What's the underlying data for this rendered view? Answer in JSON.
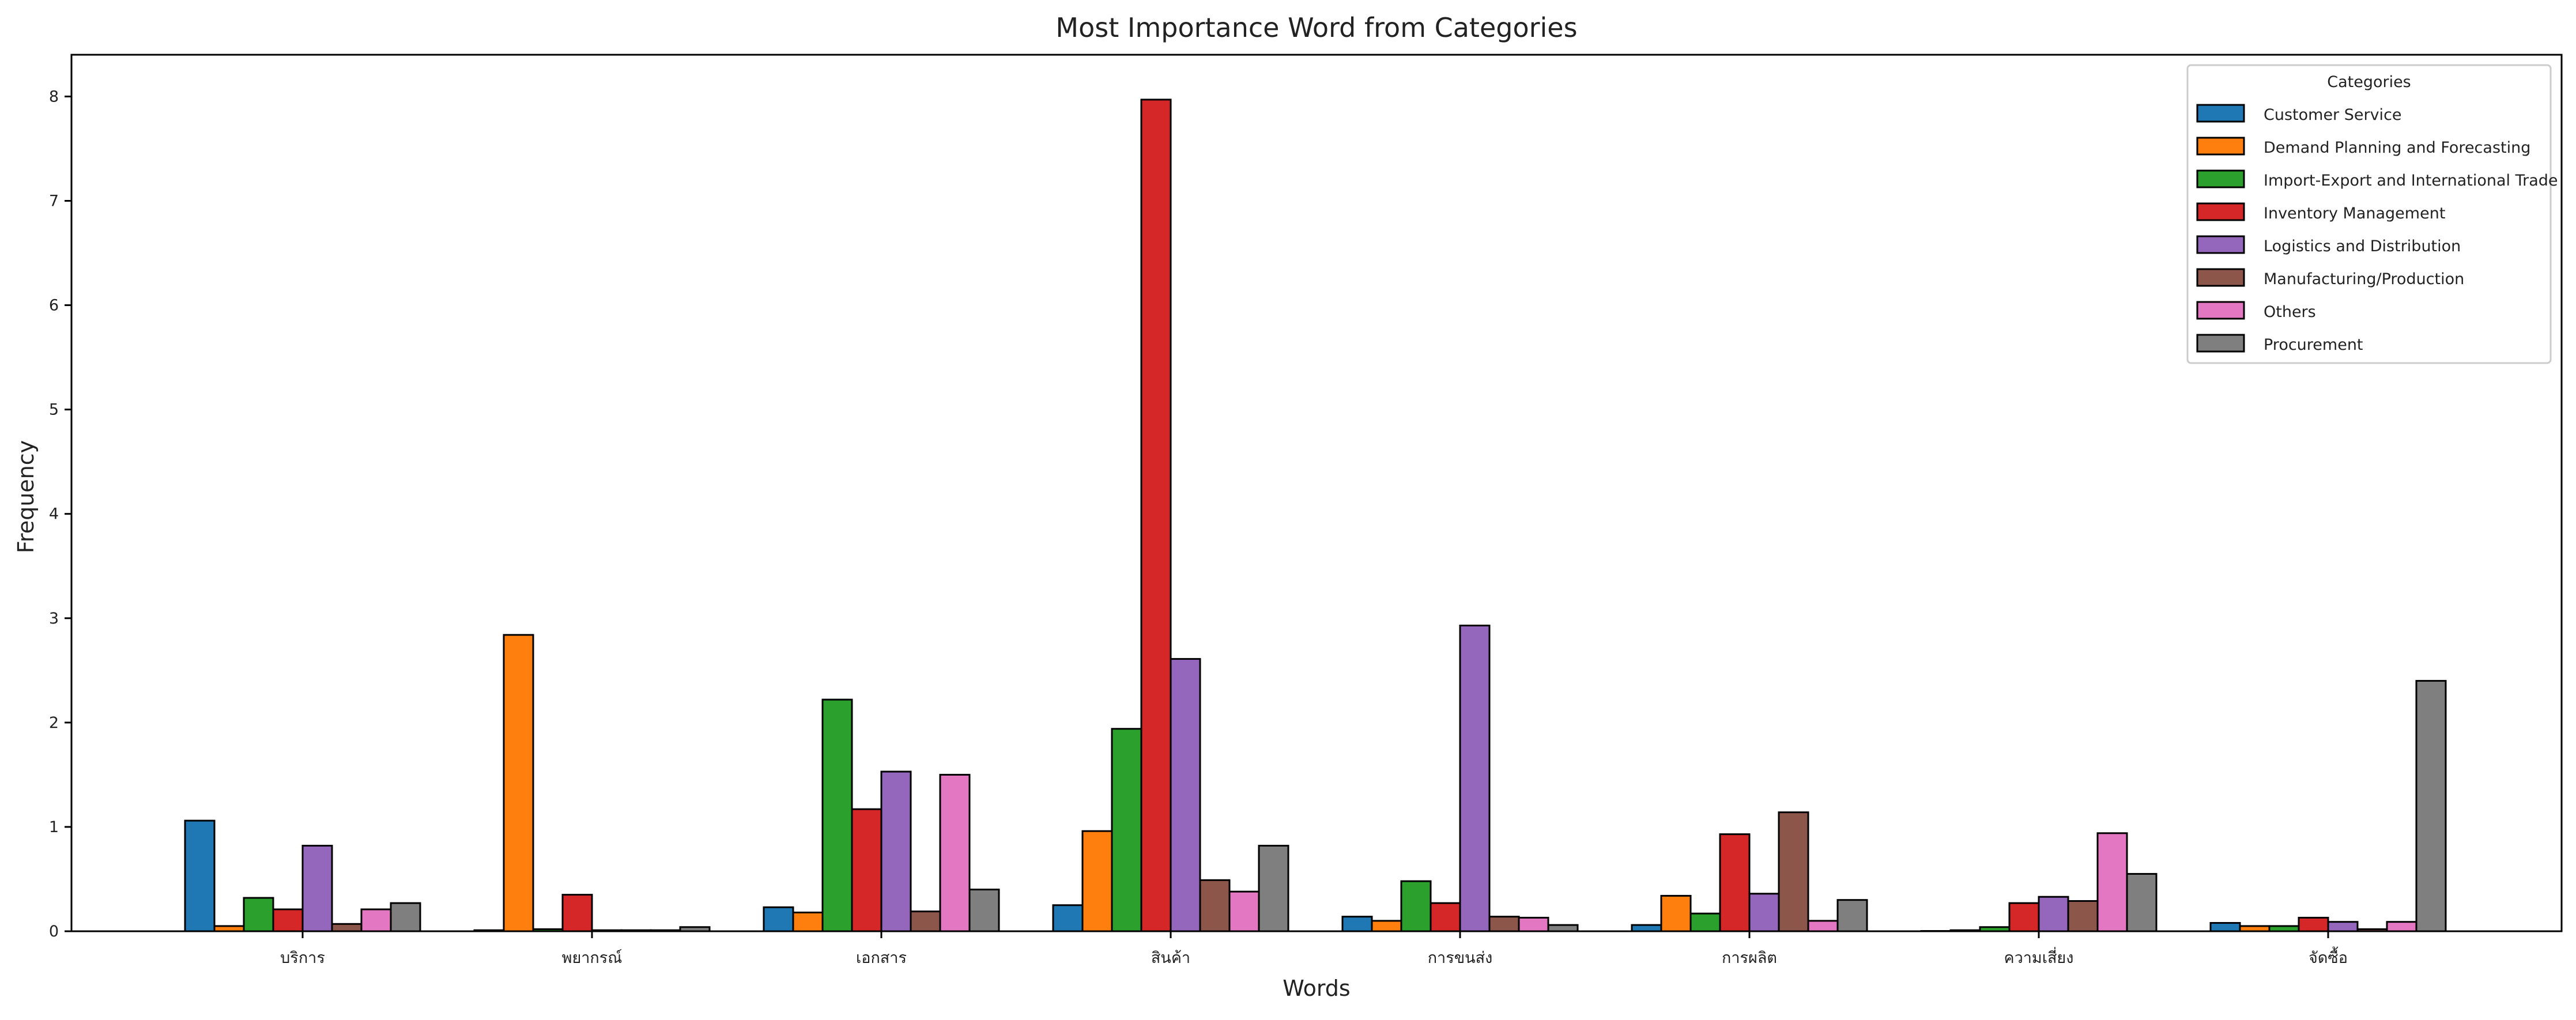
{
  "chart_data": {
    "type": "bar",
    "title": "Most Importance Word from Categories",
    "xlabel": "Words",
    "ylabel": "Frequency",
    "ylim": [
      0,
      8.4
    ],
    "yticks": [
      0,
      1,
      2,
      3,
      4,
      5,
      6,
      7,
      8
    ],
    "grid": false,
    "legend_title": "Categories",
    "legend_position": "top-right",
    "categories": [
      "บริการ",
      "พยากรณ์",
      "เอกสาร",
      "สินค้า",
      "การขนส่ง",
      "การผลิต",
      "ความเสี่ยง",
      "จัดซื้อ"
    ],
    "series": [
      {
        "name": "Customer Service",
        "color": "#1f77b4",
        "values": [
          1.06,
          0.01,
          0.23,
          0.25,
          0.14,
          0.06,
          0.0,
          0.08
        ]
      },
      {
        "name": "Demand Planning and Forecasting",
        "color": "#ff7f0e",
        "values": [
          0.05,
          2.84,
          0.18,
          0.96,
          0.1,
          0.34,
          0.01,
          0.05
        ]
      },
      {
        "name": "Import-Export and International Trade",
        "color": "#2ca02c",
        "values": [
          0.32,
          0.02,
          2.22,
          1.94,
          0.48,
          0.17,
          0.04,
          0.05
        ]
      },
      {
        "name": "Inventory Management",
        "color": "#d62728",
        "values": [
          0.21,
          0.35,
          1.17,
          7.97,
          0.27,
          0.93,
          0.27,
          0.13
        ]
      },
      {
        "name": "Logistics and Distribution",
        "color": "#9467bd",
        "values": [
          0.82,
          0.01,
          1.53,
          2.61,
          2.93,
          0.36,
          0.33,
          0.09
        ]
      },
      {
        "name": "Manufacturing/Production",
        "color": "#8c564b",
        "values": [
          0.07,
          0.01,
          0.19,
          0.49,
          0.14,
          1.14,
          0.29,
          0.02
        ]
      },
      {
        "name": "Others",
        "color": "#e377c2",
        "values": [
          0.21,
          0.01,
          1.5,
          0.38,
          0.13,
          0.1,
          0.94,
          0.09
        ]
      },
      {
        "name": "Procurement",
        "color": "#7f7f7f",
        "values": [
          0.27,
          0.04,
          0.4,
          0.82,
          0.06,
          0.3,
          0.55,
          2.4
        ]
      }
    ]
  }
}
